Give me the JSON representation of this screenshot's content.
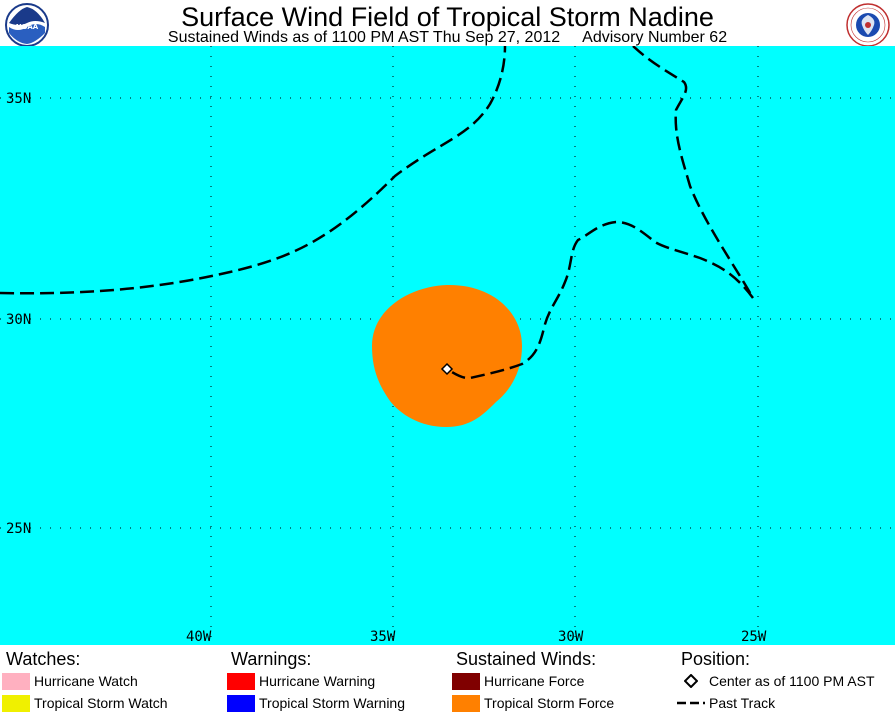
{
  "header": {
    "title": "Surface Wind Field of Tropical Storm Nadine",
    "subtitle": "Sustained Winds as of 1100 PM AST Thu Sep 27, 2012",
    "advisory": "Advisory Number 62"
  },
  "logos": {
    "left": {
      "icon": "noaa-logo-icon",
      "text": "NOAA"
    },
    "right": {
      "icon": "nws-logo-icon",
      "text": "NATIONAL WEATHER SERVICE"
    }
  },
  "map": {
    "ocean_color": "#00ffff",
    "wind_field_color": "#ff8000",
    "track_color": "#000000",
    "grid_color": "#000000",
    "lat_labels": [
      "35N",
      "30N",
      "25N"
    ],
    "lon_labels": [
      "40W",
      "35W",
      "30W",
      "25W"
    ],
    "storm_center": {
      "lat": 28.7,
      "lon": -33.5
    },
    "tropical_storm_force_field": {
      "lat_range": [
        27.3,
        30.7
      ],
      "lon_range": [
        -35.2,
        -31.2
      ]
    }
  },
  "legend": {
    "watches": {
      "heading": "Watches:",
      "items": [
        {
          "label": "Hurricane Watch",
          "color": "#ffb0c0"
        },
        {
          "label": "Tropical Storm Watch",
          "color": "#f0f000"
        }
      ]
    },
    "warnings": {
      "heading": "Warnings:",
      "items": [
        {
          "label": "Hurricane Warning",
          "color": "#ff0000"
        },
        {
          "label": "Tropical Storm Warning",
          "color": "#0000ff"
        }
      ]
    },
    "sustained_winds": {
      "heading": "Sustained Winds:",
      "items": [
        {
          "label": "Hurricane Force",
          "color": "#800000"
        },
        {
          "label": "Tropical Storm Force",
          "color": "#ff8000"
        }
      ]
    },
    "position": {
      "heading": "Position:",
      "items": [
        {
          "label": "Center as of 1100 PM AST",
          "icon": "diamond-icon"
        },
        {
          "label": "Past Track",
          "icon": "dashed-line-icon"
        }
      ]
    }
  }
}
